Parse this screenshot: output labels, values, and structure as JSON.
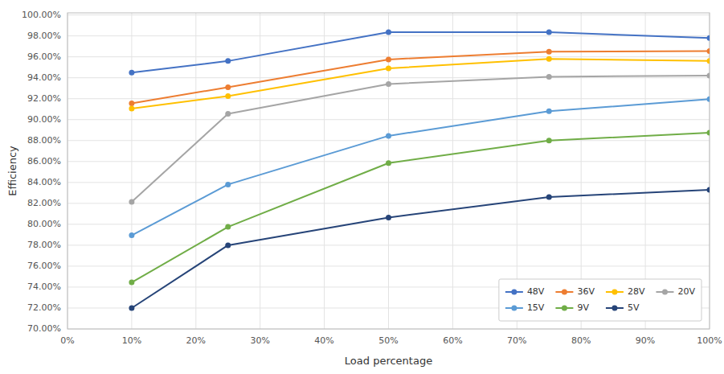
{
  "chart_data": {
    "type": "line",
    "xlabel": "Load percentage",
    "ylabel": "Efficiency",
    "x": [
      0.1,
      0.25,
      0.5,
      0.75,
      1.0
    ],
    "xlim": [
      0.0,
      1.0
    ],
    "xticks": [
      {
        "value": 0.0,
        "label": "0%"
      },
      {
        "value": 0.1,
        "label": "10%"
      },
      {
        "value": 0.2,
        "label": "20%"
      },
      {
        "value": 0.3,
        "label": "30%"
      },
      {
        "value": 0.4,
        "label": "40%"
      },
      {
        "value": 0.5,
        "label": "50%"
      },
      {
        "value": 0.6,
        "label": "60%"
      },
      {
        "value": 0.7,
        "label": "70%"
      },
      {
        "value": 0.8,
        "label": "80%"
      },
      {
        "value": 0.9,
        "label": "90%"
      },
      {
        "value": 1.0,
        "label": "100%"
      }
    ],
    "ylim": [
      0.7,
      1.002
    ],
    "yticks": [
      {
        "value": 0.7,
        "label": "70.00%"
      },
      {
        "value": 0.72,
        "label": "72.00%"
      },
      {
        "value": 0.74,
        "label": "74.00%"
      },
      {
        "value": 0.76,
        "label": "76.00%"
      },
      {
        "value": 0.78,
        "label": "78.00%"
      },
      {
        "value": 0.8,
        "label": "80.00%"
      },
      {
        "value": 0.82,
        "label": "82.00%"
      },
      {
        "value": 0.84,
        "label": "84.00%"
      },
      {
        "value": 0.86,
        "label": "86.00%"
      },
      {
        "value": 0.88,
        "label": "88.00%"
      },
      {
        "value": 0.9,
        "label": "90.00%"
      },
      {
        "value": 0.92,
        "label": "92.00%"
      },
      {
        "value": 0.94,
        "label": "94.00%"
      },
      {
        "value": 0.96,
        "label": "96.00%"
      },
      {
        "value": 0.98,
        "label": "98.00%"
      },
      {
        "value": 1.0,
        "label": "100.00%"
      }
    ],
    "series": [
      {
        "name": "48V",
        "color": "#4472C4",
        "values": [
          0.945,
          0.956,
          0.9835,
          0.9835,
          0.978
        ]
      },
      {
        "name": "36V",
        "color": "#ED7D31",
        "values": [
          0.9155,
          0.931,
          0.9575,
          0.965,
          0.9655
        ]
      },
      {
        "name": "28V",
        "color": "#FFC000",
        "values": [
          0.9105,
          0.9225,
          0.949,
          0.958,
          0.956
        ]
      },
      {
        "name": "20V",
        "color": "#A5A5A5",
        "values": [
          0.8215,
          0.9055,
          0.934,
          0.941,
          0.942
        ]
      },
      {
        "name": "15V",
        "color": "#5B9BD5",
        "values": [
          0.7895,
          0.838,
          0.8845,
          0.908,
          0.9195
        ]
      },
      {
        "name": "9V",
        "color": "#70AD47",
        "values": [
          0.7445,
          0.7975,
          0.8585,
          0.88,
          0.8875
        ]
      },
      {
        "name": "5V",
        "color": "#264478",
        "values": [
          0.72,
          0.78,
          0.8065,
          0.826,
          0.833
        ]
      }
    ],
    "marker": "circle",
    "grid": true,
    "legend": "lower right"
  }
}
